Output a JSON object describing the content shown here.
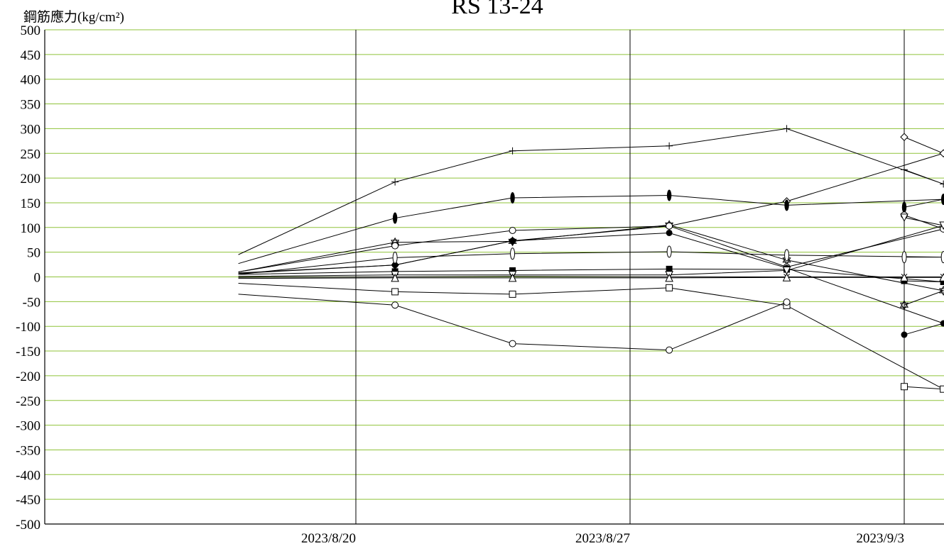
{
  "chart_data": {
    "type": "line",
    "title": "RS 13-24",
    "ylabel": "鋼筋應力(kg/cm²)",
    "xlabel": "",
    "ylim": [
      -500,
      500
    ],
    "yticks": [
      "500",
      "450",
      "400",
      "350",
      "300",
      "250",
      "200",
      "150",
      "100",
      "50",
      "0",
      "-50",
      "-100",
      "-150",
      "-200",
      "-250",
      "-300",
      "-350",
      "-400",
      "-450",
      "-500"
    ],
    "xticks": [
      "2023/8/20",
      "2023/8/27",
      "2023/9/3"
    ],
    "x": [
      "2023/8/17",
      "2023/8/20 +1",
      "2023/8/24",
      "2023/8/27 +1",
      "2023/8/31",
      "2023/9/3 +1",
      "2023/9/3"
    ],
    "grid": true,
    "legend": "none",
    "series": [
      {
        "marker": "plus",
        "values": [
          45,
          192,
          255,
          265,
          300,
          188,
          217
        ]
      },
      {
        "marker": "diamond",
        "values": [
          8,
          24,
          73,
          103,
          153,
          250,
          283
        ]
      },
      {
        "marker": "filled-ellipse",
        "values": [
          27,
          119,
          160,
          165,
          145,
          157,
          141
        ]
      },
      {
        "marker": "star-of-david",
        "values": [
          10,
          70,
          72,
          105,
          34,
          -28,
          -57
        ]
      },
      {
        "marker": "circle-open-b",
        "values": [
          10,
          63,
          94,
          103,
          20,
          97,
          125
        ]
      },
      {
        "marker": "filled-circle",
        "values": [
          7,
          24,
          73,
          89,
          18,
          -94,
          -117
        ]
      },
      {
        "marker": "open-ellipse",
        "values": [
          5,
          39,
          47,
          51,
          44,
          40,
          40
        ]
      },
      {
        "marker": "filled-square",
        "values": [
          5,
          11,
          13,
          16,
          15,
          -10,
          -8
        ]
      },
      {
        "marker": "triangle-down",
        "values": [
          1,
          4,
          4,
          4,
          13,
          104,
          120
        ]
      },
      {
        "marker": "x-mark",
        "values": [
          -1,
          0,
          1,
          0,
          0,
          0,
          0
        ]
      },
      {
        "marker": "triangle-up",
        "values": [
          -3,
          -2,
          -2,
          -2,
          -1,
          -1,
          -1
        ]
      },
      {
        "marker": "open-square",
        "values": [
          -13,
          -30,
          -35,
          -22,
          -58,
          -227,
          -222
        ]
      },
      {
        "marker": "open-circle",
        "values": [
          -35,
          -57,
          -135,
          -148,
          -51,
          null,
          null
        ]
      }
    ],
    "colors": {
      "grid_horizontal": "#8fc33a",
      "grid_vertical": "#000000",
      "lines": "#000000"
    }
  }
}
